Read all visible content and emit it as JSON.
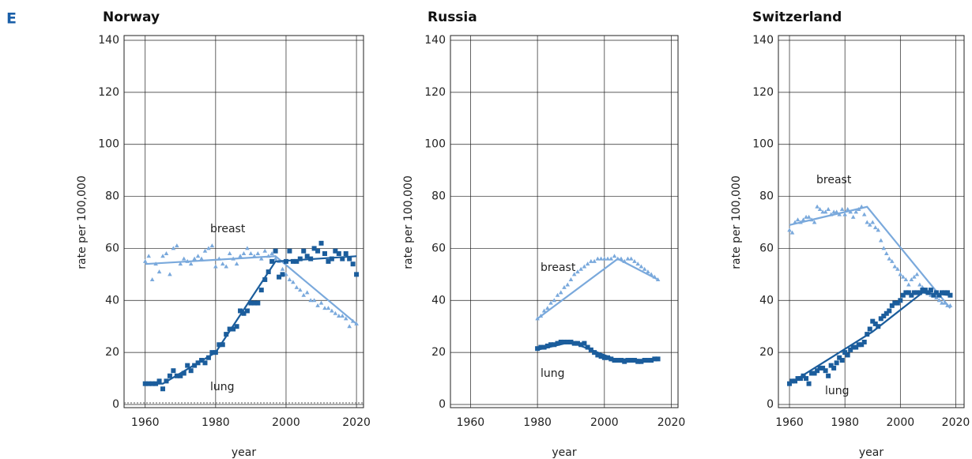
{
  "label": "E",
  "chart_data": [
    {
      "type": "scatter",
      "title": "Norway",
      "xlabel": "year",
      "ylabel": "rate per 100,000",
      "xlim": [
        1954,
        2022
      ],
      "xticks": [
        1960,
        1980,
        2000,
        2020
      ],
      "ylim": [
        0,
        140
      ],
      "yticks": [
        0,
        20,
        40,
        60,
        80,
        100,
        120,
        140
      ],
      "grid": true,
      "zero_line": true,
      "x": [
        1960,
        1961,
        1962,
        1963,
        1964,
        1965,
        1966,
        1967,
        1968,
        1969,
        1970,
        1971,
        1972,
        1973,
        1974,
        1975,
        1976,
        1977,
        1978,
        1979,
        1980,
        1981,
        1982,
        1983,
        1984,
        1985,
        1986,
        1987,
        1988,
        1989,
        1990,
        1991,
        1992,
        1993,
        1994,
        1995,
        1996,
        1997,
        1998,
        1999,
        2000,
        2001,
        2002,
        2003,
        2004,
        2005,
        2006,
        2007,
        2008,
        2009,
        2010,
        2011,
        2012,
        2013,
        2014,
        2015,
        2016,
        2017,
        2018,
        2019,
        2020
      ],
      "series": [
        {
          "name": "breast",
          "color": "#7aa9dc",
          "marker": "triangle",
          "values": [
            55,
            57,
            48,
            54,
            51,
            57,
            58,
            50,
            60,
            61,
            54,
            56,
            55,
            54,
            56,
            57,
            56,
            59,
            60,
            61,
            53,
            56,
            54,
            53,
            58,
            56,
            54,
            57,
            58,
            60,
            58,
            57,
            58,
            56,
            59,
            57,
            58,
            56,
            55,
            52,
            50,
            48,
            47,
            45,
            44,
            42,
            43,
            40,
            40,
            38,
            39,
            37,
            37,
            36,
            35,
            34,
            34,
            33,
            30,
            32,
            31
          ],
          "fit": {
            "x": [
              1960,
              1997,
              2020
            ],
            "values": [
              54,
              57,
              31
            ]
          }
        },
        {
          "name": "lung",
          "color": "#1b5d9c",
          "marker": "square",
          "values": [
            8,
            8,
            8,
            8,
            9,
            6,
            9,
            11,
            13,
            11,
            11,
            12,
            15,
            13,
            15,
            16,
            17,
            16,
            18,
            20,
            20,
            23,
            23,
            27,
            29,
            29,
            30,
            36,
            35,
            36,
            39,
            39,
            39,
            44,
            48,
            51,
            55,
            59,
            49,
            50,
            55,
            59,
            55,
            55,
            56,
            59,
            57,
            56,
            60,
            59,
            62,
            58,
            55,
            56,
            59,
            58,
            56,
            58,
            56,
            54,
            50
          ],
          "fit": {
            "x": [
              1960,
              1965,
              1980,
              1997,
              2020
            ],
            "values": [
              8,
              8,
              20,
              55,
              57
            ]
          }
        }
      ]
    },
    {
      "type": "scatter",
      "title": "Russia",
      "xlabel": "year",
      "ylabel": "rate per 100,000",
      "xlim": [
        1954,
        2022
      ],
      "xticks": [
        1960,
        1980,
        2000,
        2020
      ],
      "ylim": [
        0,
        140
      ],
      "yticks": [
        0,
        20,
        40,
        60,
        80,
        100,
        120,
        140
      ],
      "grid": true,
      "zero_line": false,
      "x": [
        1980,
        1981,
        1982,
        1983,
        1984,
        1985,
        1986,
        1987,
        1988,
        1989,
        1990,
        1991,
        1992,
        1993,
        1994,
        1995,
        1996,
        1997,
        1998,
        1999,
        2000,
        2001,
        2002,
        2003,
        2004,
        2005,
        2006,
        2007,
        2008,
        2009,
        2010,
        2011,
        2012,
        2013,
        2014,
        2015,
        2016
      ],
      "series": [
        {
          "name": "breast",
          "color": "#7aa9dc",
          "marker": "triangle",
          "values": [
            33,
            34,
            36,
            37,
            39,
            40,
            42,
            43,
            45,
            46,
            48,
            50,
            51,
            52,
            53,
            54,
            55,
            55,
            56,
            56,
            56,
            56,
            56,
            57,
            56,
            56,
            55,
            56,
            56,
            55,
            54,
            53,
            52,
            51,
            50,
            49,
            48
          ],
          "fit": {
            "x": [
              1980,
              2004,
              2016
            ],
            "values": [
              33,
              56,
              48
            ]
          }
        },
        {
          "name": "lung",
          "color": "#1b5d9c",
          "marker": "square",
          "values": [
            21.5,
            22,
            22,
            22.5,
            23,
            23,
            23.5,
            24,
            24,
            24,
            24,
            23.5,
            23.5,
            23,
            23.5,
            22,
            21,
            20,
            19,
            18.5,
            18,
            18,
            17.5,
            17,
            17,
            17,
            16.5,
            17,
            17,
            17,
            16.5,
            16.5,
            17,
            17,
            17,
            17.5,
            17.5
          ],
          "fit": {
            "x": [
              1980,
              1990,
              2003,
              2016
            ],
            "values": [
              21,
              24,
              17.5,
              17
            ]
          }
        }
      ]
    },
    {
      "type": "scatter",
      "title": "Switzerland",
      "xlabel": "year",
      "ylabel": "rate per 100,000",
      "xlim": [
        1956,
        2023
      ],
      "xticks": [
        1960,
        1980,
        2000,
        2020
      ],
      "ylim": [
        0,
        140
      ],
      "yticks": [
        0,
        20,
        40,
        60,
        80,
        100,
        120,
        140
      ],
      "grid": true,
      "zero_line": false,
      "x": [
        1960,
        1961,
        1962,
        1963,
        1964,
        1965,
        1966,
        1967,
        1968,
        1969,
        1970,
        1971,
        1972,
        1973,
        1974,
        1975,
        1976,
        1977,
        1978,
        1979,
        1980,
        1981,
        1982,
        1983,
        1984,
        1985,
        1986,
        1987,
        1988,
        1989,
        1990,
        1991,
        1992,
        1993,
        1994,
        1995,
        1996,
        1997,
        1998,
        1999,
        2000,
        2001,
        2002,
        2003,
        2004,
        2005,
        2006,
        2007,
        2008,
        2009,
        2010,
        2011,
        2012,
        2013,
        2014,
        2015,
        2016,
        2017,
        2018
      ],
      "series": [
        {
          "name": "breast",
          "color": "#7aa9dc",
          "marker": "triangle",
          "values": [
            67,
            66,
            70,
            71,
            70,
            71,
            72,
            72,
            71,
            70,
            76,
            75,
            74,
            74,
            75,
            73,
            74,
            74,
            73,
            75,
            73,
            75,
            74,
            72,
            74,
            75,
            76,
            73,
            70,
            69,
            70,
            68,
            67,
            63,
            60,
            58,
            56,
            55,
            53,
            52,
            50,
            49,
            48,
            46,
            48,
            49,
            50,
            46,
            45,
            44,
            43,
            42,
            42,
            41,
            40,
            39,
            39,
            38,
            38
          ],
          "fit": {
            "x": [
              1960,
              1988,
              2018
            ],
            "values": [
              69,
              76,
              37
            ]
          }
        },
        {
          "name": "lung",
          "color": "#1b5d9c",
          "marker": "square",
          "values": [
            8,
            9,
            9,
            10,
            10,
            11,
            10,
            8,
            12,
            12,
            13,
            14,
            14,
            13,
            11,
            15,
            14,
            16,
            18,
            17,
            20,
            19,
            21,
            22,
            22,
            23,
            23,
            24,
            27,
            29,
            32,
            31,
            30,
            33,
            34,
            35,
            36,
            38,
            39,
            39,
            40,
            42,
            43,
            43,
            42,
            43,
            43,
            43,
            44,
            44,
            43,
            44,
            42,
            43,
            42,
            43,
            43,
            43,
            42
          ],
          "fit": {
            "x": [
              1960,
              1990,
              2008,
              2018
            ],
            "values": [
              8,
              28,
              43,
              42
            ]
          }
        }
      ]
    }
  ]
}
